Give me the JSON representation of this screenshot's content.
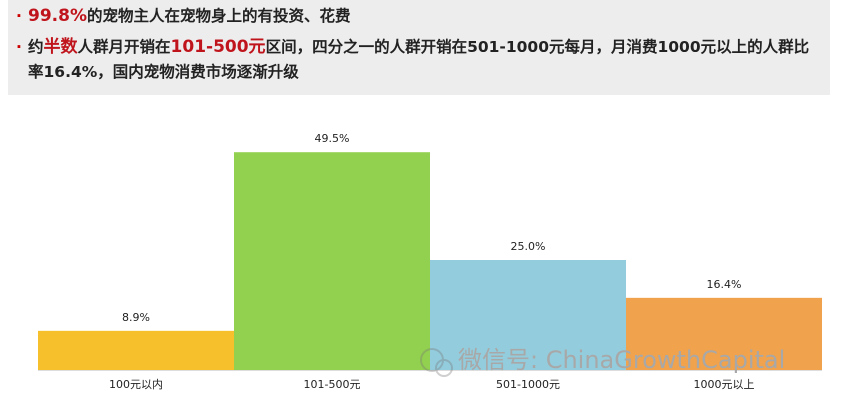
{
  "header": {
    "bullets": [
      {
        "segments": [
          {
            "text": "99.8%",
            "highlight": true
          },
          {
            "text": "的宠物主人在宠物身上的有投资、花费",
            "highlight": false
          }
        ]
      },
      {
        "segments": [
          {
            "text": "约",
            "highlight": false
          },
          {
            "text": "半数",
            "highlight": true
          },
          {
            "text": "人群月开销在",
            "highlight": false
          },
          {
            "text": "101-500元",
            "highlight": true
          },
          {
            "text": "区间，四分之一的人群开销在501-1000元每月，月消费1000元以上的人群比率16.4%，国内宠物消费市场逐渐升级",
            "highlight": false
          }
        ]
      }
    ]
  },
  "chart_data": {
    "type": "bar",
    "categories": [
      "100元以内",
      "101-500元",
      "501-1000元",
      "1000元以上"
    ],
    "values": [
      8.9,
      49.5,
      25.0,
      16.4
    ],
    "value_labels": [
      "8.9%",
      "49.5%",
      "25.0%",
      "16.4%"
    ],
    "colors": [
      "#f6c02c",
      "#92d050",
      "#93cddd",
      "#f1a24c"
    ],
    "ylim": [
      0,
      55
    ]
  },
  "watermark": "微信号: ChinaGrowthCapital"
}
